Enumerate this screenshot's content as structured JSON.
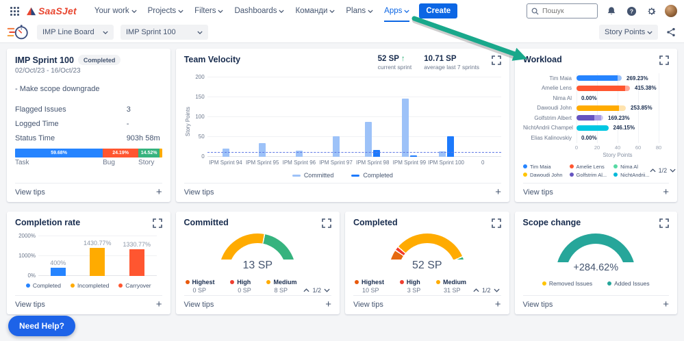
{
  "nav": {
    "logo": "SaaSJet",
    "items": [
      {
        "label": "Your work"
      },
      {
        "label": "Projects"
      },
      {
        "label": "Filters"
      },
      {
        "label": "Dashboards"
      },
      {
        "label": "Команди"
      },
      {
        "label": "Plans"
      },
      {
        "label": "Apps"
      }
    ],
    "create_label": "Create",
    "search_placeholder": "Пошук"
  },
  "toolbar": {
    "board_select": "IMP Line Board",
    "sprint_select": "IMP Sprint 100",
    "metric_select": "Story Points"
  },
  "common": {
    "view_tips": "View tips",
    "plus": "+"
  },
  "sprint_card": {
    "title": "IMP Sprint 100",
    "badge": "Completed",
    "dates": "02/Oct/23 - 16/Oct/23",
    "goal": "- Make scope downgrade",
    "stats": [
      {
        "label": "Flagged Issues",
        "value": "3"
      },
      {
        "label": "Logged Time",
        "value": "-"
      },
      {
        "label": "Status Time",
        "value": "903h 58m"
      }
    ],
    "distribution": [
      {
        "label": "Task",
        "pct": "59.68%",
        "value": 59.68,
        "color": "#2684FF"
      },
      {
        "label": "Bug",
        "pct": "24.19%",
        "value": 24.19,
        "color": "#FF5630"
      },
      {
        "label": "Story",
        "pct": "14.52%",
        "value": 14.52,
        "color": "#36B37E"
      },
      {
        "label": "",
        "pct": "",
        "value": 1.61,
        "color": "#FFAB00"
      }
    ]
  },
  "chart_data": [
    {
      "id": "team_velocity",
      "type": "bar",
      "title": "Team Velocity",
      "current_sprint_value": "52 SP",
      "current_sprint_caption": "current sprint",
      "average_value": "10.71 SP",
      "average_caption": "average last 7 sprints",
      "categories": [
        "IPM Sprint 94",
        "IPM Sprint 95",
        "IPM Sprint 96",
        "IPM Sprint 97",
        "IPM Sprint 98",
        "IPM Sprint 99",
        "IPM Sprint 100",
        "0"
      ],
      "series": [
        {
          "name": "Committed",
          "color": "#9DC2F8",
          "values": [
            20,
            34,
            16,
            51,
            88,
            147,
            13,
            0
          ]
        },
        {
          "name": "Completed",
          "color": "#1D7AFC",
          "values": [
            0,
            0,
            0,
            0,
            17,
            4,
            52,
            0
          ]
        }
      ],
      "ylabel": "Story Points",
      "yticks": [
        0,
        50,
        100,
        150,
        200
      ],
      "ylim": [
        0,
        200
      ],
      "average_line": 10.71,
      "average_line_color": "#5E77E5",
      "legend_position": "bottom"
    },
    {
      "id": "workload",
      "type": "bar-horizontal",
      "title": "Workload",
      "xlabel": "Story Points",
      "xticks": [
        0,
        20,
        40,
        60,
        80
      ],
      "xlim": [
        0,
        80
      ],
      "rows": [
        {
          "name": "Tim Maia",
          "pct": "269.23%",
          "segments": [
            {
              "v": 40,
              "c": "#2684FF"
            },
            {
              "v": 4,
              "c": "#9DC2F8"
            }
          ]
        },
        {
          "name": "Amelie Lens",
          "pct": "415.38%",
          "segments": [
            {
              "v": 47,
              "c": "#FF5630"
            },
            {
              "v": 5,
              "c": "#FFA899"
            }
          ]
        },
        {
          "name": "Nima Al",
          "pct": "0.00%",
          "segments": []
        },
        {
          "name": "Dawoudi John",
          "pct": "253.85%",
          "segments": [
            {
              "v": 41,
              "c": "#FFAB00"
            },
            {
              "v": 7,
              "c": "#FFE3AE"
            }
          ]
        },
        {
          "name": "Golfstrim Albert",
          "pct": "169.23%",
          "segments": [
            {
              "v": 17,
              "c": "#6554C0"
            },
            {
              "v": 7,
              "c": "#A79BE6"
            },
            {
              "v": 2,
              "c": "#CFC9F0"
            }
          ]
        },
        {
          "name": "NichtAndrii Champel",
          "pct": "246.15%",
          "segments": [
            {
              "v": 31,
              "c": "#00C7E2"
            }
          ]
        },
        {
          "name": "Elias Kalinovskiy",
          "pct": "0.00%",
          "segments": []
        }
      ],
      "legend": [
        {
          "label": "Tim Maia",
          "color": "#2684FF"
        },
        {
          "label": "Amelie Lens",
          "color": "#FF5630"
        },
        {
          "label": "Nima Al",
          "color": "#57D9A3"
        },
        {
          "label": "Dawoudi John",
          "color": "#FFC400"
        },
        {
          "label": "Golfstrim Al...",
          "color": "#6554C0"
        },
        {
          "label": "NichtAndrii...",
          "color": "#00B8D9"
        }
      ],
      "pagination": "1/2"
    },
    {
      "id": "completion_rate",
      "type": "bar",
      "title": "Completion rate",
      "categories": [
        "Completed",
        "Incompleted",
        "Carryover"
      ],
      "values": [
        400,
        1430.77,
        1330.77
      ],
      "value_labels": [
        "400%",
        "1430.77%",
        "1330.77%"
      ],
      "colors": [
        "#2684FF",
        "#FFAB00",
        "#FF5630"
      ],
      "ytick_labels": [
        "0%",
        "1000%",
        "2000%"
      ],
      "yticks": [
        0,
        1000,
        2000
      ],
      "ylim": [
        0,
        2000
      ],
      "legend_position": "bottom"
    },
    {
      "id": "committed",
      "type": "gauge",
      "title": "Committed",
      "value": "13 SP",
      "segments": [
        {
          "color": "#FFAB00",
          "frac": 0.565
        },
        {
          "color": "#36B37E",
          "frac": 0.435
        }
      ],
      "legend": [
        {
          "label": "Highest",
          "value": "0 SP",
          "color": "#E8590C"
        },
        {
          "label": "High",
          "value": "0 SP",
          "color": "#EF3F30"
        },
        {
          "label": "Medium",
          "value": "8 SP",
          "color": "#FFAB00"
        }
      ],
      "pagination": "1/2"
    },
    {
      "id": "completed",
      "type": "gauge",
      "title": "Completed",
      "value": "52 SP",
      "segments": [
        {
          "color": "#E56910",
          "frac": 0.195
        },
        {
          "color": "#F23C2E",
          "frac": 0.035
        },
        {
          "color": "#FFAB00",
          "frac": 0.645
        },
        {
          "color": "#36B37E",
          "frac": 0.125
        }
      ],
      "legend": [
        {
          "label": "Highest",
          "value": "10 SP",
          "color": "#E8590C"
        },
        {
          "label": "High",
          "value": "3 SP",
          "color": "#EF3F30"
        },
        {
          "label": "Medium",
          "value": "31 SP",
          "color": "#FFAB00"
        }
      ],
      "pagination": "1/2"
    },
    {
      "id": "scope_change",
      "type": "gauge",
      "title": "Scope change",
      "value": "+284.62%",
      "segments": [
        {
          "color": "#FFC400",
          "frac": 0.075
        },
        {
          "color": "#26A69A",
          "frac": 0.925
        }
      ],
      "legend": [
        {
          "label": "Removed Issues",
          "color": "#FFC400"
        },
        {
          "label": "Added Issues",
          "color": "#26A69A"
        }
      ]
    }
  ],
  "help_button": "Need Help?"
}
